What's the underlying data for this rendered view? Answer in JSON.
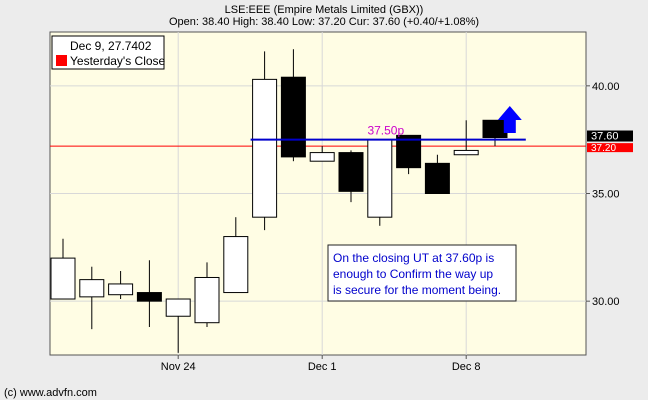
{
  "header": {
    "title": "LSE:EEE (Empire Metals Limited (GBX))",
    "quote": "Open: 38.40 High: 38.40 Low: 37.20 Cur: 37.60 (+0.40/+1.08%)"
  },
  "legend": {
    "date_label": "Dec 9, 27.7402",
    "yesterday_label": "Yesterday's Close"
  },
  "footer": {
    "credit": "(c) www.advfn.com"
  },
  "colors": {
    "plot_bg": "#fffde4",
    "page_bg": "#ececec",
    "up_candle": "#ffffff",
    "down_candle": "#000000",
    "yesterday_close": "#ff0000",
    "level_line": "#0000cc",
    "level_text": "#cc00cc",
    "annotation_text": "#0000cc",
    "arrow": "#0000ff"
  },
  "chart_data": {
    "type": "candlestick",
    "title": "LSE:EEE (Empire Metals Limited (GBX))",
    "ylim": [
      27.5,
      42.5
    ],
    "y_ticks": [
      30.0,
      35.0,
      40.0
    ],
    "y_tick_labels": [
      "30.00",
      "35.00",
      "40.00"
    ],
    "x_tick_labels": [
      {
        "label": "Nov 24",
        "index": 4
      },
      {
        "label": "Dec 1",
        "index": 9
      },
      {
        "label": "Dec 8",
        "index": 14
      }
    ],
    "grid": true,
    "candles": [
      {
        "open": 30.1,
        "close": 32.0,
        "high": 32.9,
        "low": 30.1
      },
      {
        "open": 30.2,
        "close": 31.0,
        "high": 31.6,
        "low": 28.7
      },
      {
        "open": 30.3,
        "close": 30.8,
        "high": 31.4,
        "low": 30.1
      },
      {
        "open": 30.4,
        "close": 30.0,
        "high": 31.9,
        "low": 28.8
      },
      {
        "open": 29.3,
        "close": 30.1,
        "high": 30.1,
        "low": 27.6
      },
      {
        "open": 29.0,
        "close": 31.1,
        "high": 31.8,
        "low": 28.8
      },
      {
        "open": 30.4,
        "close": 33.0,
        "high": 33.9,
        "low": 30.4
      },
      {
        "open": 33.9,
        "close": 40.3,
        "high": 41.6,
        "low": 33.3
      },
      {
        "open": 40.4,
        "close": 36.7,
        "high": 41.7,
        "low": 36.5
      },
      {
        "open": 36.5,
        "close": 36.9,
        "high": 37.2,
        "low": 36.5
      },
      {
        "open": 36.9,
        "close": 35.1,
        "high": 37.0,
        "low": 34.6
      },
      {
        "open": 33.9,
        "close": 37.5,
        "high": 37.5,
        "low": 33.5
      },
      {
        "open": 37.7,
        "close": 36.2,
        "high": 37.7,
        "low": 35.9
      },
      {
        "open": 36.4,
        "close": 35.0,
        "high": 36.8,
        "low": 35.0
      },
      {
        "open": 36.8,
        "close": 37.0,
        "high": 38.4,
        "low": 36.8
      },
      {
        "open": 38.4,
        "close": 37.6,
        "high": 38.4,
        "low": 37.2
      }
    ],
    "yesterday_close": 37.2,
    "current": 37.6,
    "current_label": "37.60",
    "yesterday_close_label": "37.20",
    "level_line": {
      "value": 37.5,
      "label": "37.50p",
      "from_index": 7,
      "to_index": 16
    },
    "annotation": {
      "text": "On the closing UT at 37.60p is enough to Confirm  the way up is secure for the moment being.",
      "lines": [
        "On the closing UT at 37.60p is",
        "enough to Confirm  the way up",
        "is secure for the moment being."
      ]
    },
    "arrow": {
      "direction": "up",
      "index": 16
    }
  }
}
